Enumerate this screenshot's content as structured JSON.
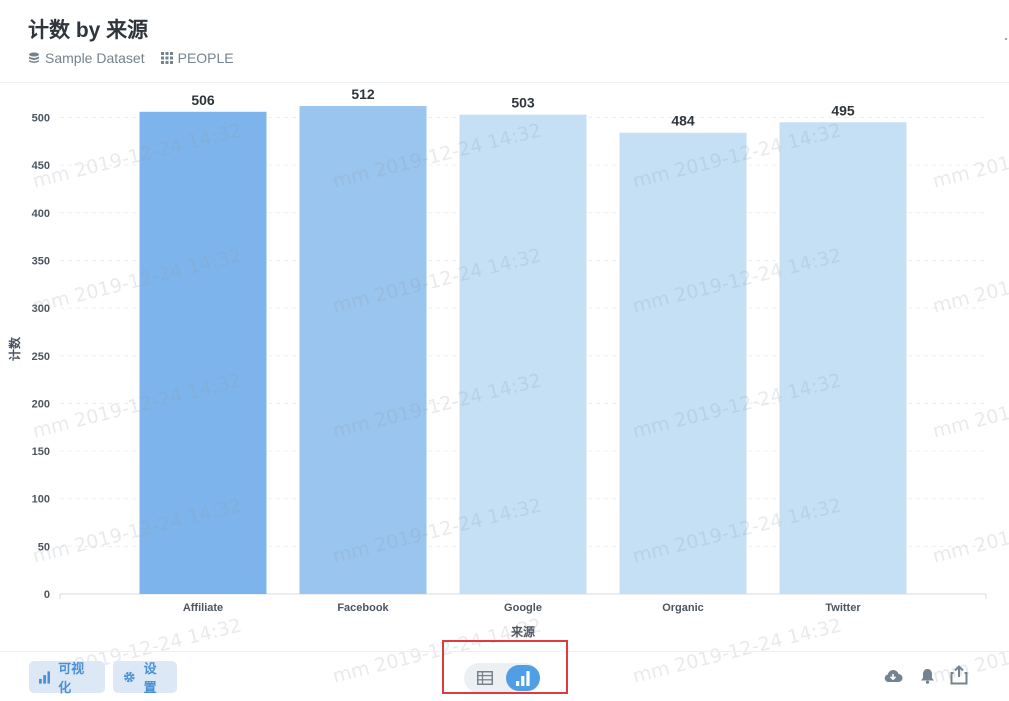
{
  "header": {
    "title": "计数 by 来源",
    "breadcrumbs": [
      {
        "label": "Sample Dataset",
        "icon": "database-icon"
      },
      {
        "label": "PEOPLE",
        "icon": "table-grid-icon"
      }
    ]
  },
  "chart_data": {
    "type": "bar",
    "categories": [
      "Affiliate",
      "Facebook",
      "Google",
      "Organic",
      "Twitter"
    ],
    "values": [
      506,
      512,
      503,
      484,
      495
    ],
    "xlabel": "来源",
    "ylabel": "计数",
    "ylim": [
      0,
      500
    ],
    "yticks": [
      "0",
      "50",
      "100",
      "150",
      "200",
      "250",
      "300",
      "350",
      "400",
      "450",
      "500"
    ],
    "grid": true,
    "bar_colors": [
      "#7cb4eb",
      "#99c5ef",
      "#c5dff5",
      "#c5dff5",
      "#c5dff5"
    ]
  },
  "watermark": {
    "text": "mm 2019-12-24 14:32"
  },
  "footer": {
    "visualize_label": "可视化",
    "settings_label": "设置",
    "view_toggle": {
      "options": [
        "table-icon",
        "bar-chart-icon"
      ],
      "selected": "bar-chart-icon"
    },
    "right_icons": [
      "download-cloud-icon",
      "bell-icon",
      "share-icon"
    ]
  },
  "colors": {
    "accent": "#509ee3",
    "highlight_box": "#e0393e"
  }
}
